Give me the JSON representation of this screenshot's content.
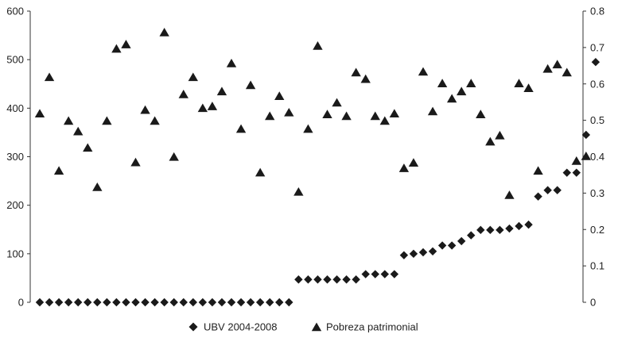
{
  "chart_data": {
    "type": "scatter",
    "title": "",
    "xlabel": "",
    "ylabel": "",
    "ylim_left": [
      0,
      600
    ],
    "ylim_right": [
      0,
      0.8
    ],
    "yticks_left": [
      "0",
      "100",
      "200",
      "300",
      "400",
      "500",
      "600"
    ],
    "yticks_right": [
      "0",
      "0.1",
      "0.2",
      "0.3",
      "0.4",
      "0.5",
      "0.6",
      "0.7",
      "0.8"
    ],
    "grid": false,
    "legend_position": "bottom",
    "legend": [
      "UBV 2004-2008",
      "Pobreza patrimonial"
    ],
    "series": [
      {
        "name": "UBV 2004-2008",
        "axis": "left",
        "marker": "diamond",
        "color": "#1a1a1a",
        "points": [
          [
            1,
            0
          ],
          [
            2,
            0
          ],
          [
            3,
            0
          ],
          [
            4,
            0
          ],
          [
            5,
            0
          ],
          [
            6,
            0
          ],
          [
            7,
            0
          ],
          [
            8,
            0
          ],
          [
            9,
            0
          ],
          [
            10,
            0
          ],
          [
            11,
            0
          ],
          [
            12,
            0
          ],
          [
            13,
            0
          ],
          [
            14,
            0
          ],
          [
            15,
            0
          ],
          [
            16,
            0
          ],
          [
            17,
            0
          ],
          [
            18,
            0
          ],
          [
            19,
            0
          ],
          [
            20,
            0
          ],
          [
            21,
            0
          ],
          [
            22,
            0
          ],
          [
            23,
            0
          ],
          [
            24,
            0
          ],
          [
            25,
            0
          ],
          [
            26,
            0
          ],
          [
            27,
            0
          ],
          [
            28,
            47
          ],
          [
            29,
            47
          ],
          [
            30,
            47
          ],
          [
            31,
            47
          ],
          [
            32,
            47
          ],
          [
            33,
            47
          ],
          [
            34,
            47
          ],
          [
            35,
            58
          ],
          [
            36,
            58
          ],
          [
            37,
            58
          ],
          [
            38,
            58
          ],
          [
            39,
            97
          ],
          [
            40,
            100
          ],
          [
            41,
            103
          ],
          [
            42,
            105
          ],
          [
            43,
            117
          ],
          [
            44,
            117
          ],
          [
            45,
            126
          ],
          [
            46,
            138
          ],
          [
            47,
            149
          ],
          [
            48,
            149
          ],
          [
            49,
            149
          ],
          [
            50,
            152
          ],
          [
            51,
            157
          ],
          [
            52,
            160
          ],
          [
            53,
            218
          ],
          [
            54,
            231
          ],
          [
            55,
            231
          ],
          [
            56,
            267
          ],
          [
            57,
            267
          ],
          [
            58,
            345
          ],
          [
            59,
            495
          ]
        ]
      },
      {
        "name": "Pobreza patrimonial",
        "axis": "right",
        "marker": "triangle",
        "color": "#1a1a1a",
        "points": [
          [
            1,
            0.517
          ],
          [
            2,
            0.617
          ],
          [
            3,
            0.36
          ],
          [
            4,
            0.497
          ],
          [
            5,
            0.468
          ],
          [
            6,
            0.423
          ],
          [
            7,
            0.315
          ],
          [
            8,
            0.497
          ],
          [
            9,
            0.695
          ],
          [
            10,
            0.707
          ],
          [
            11,
            0.383
          ],
          [
            12,
            0.527
          ],
          [
            13,
            0.497
          ],
          [
            14,
            0.74
          ],
          [
            15,
            0.398
          ],
          [
            16,
            0.57
          ],
          [
            17,
            0.617
          ],
          [
            18,
            0.532
          ],
          [
            19,
            0.537
          ],
          [
            20,
            0.578
          ],
          [
            21,
            0.655
          ],
          [
            22,
            0.475
          ],
          [
            23,
            0.595
          ],
          [
            24,
            0.355
          ],
          [
            25,
            0.51
          ],
          [
            26,
            0.565
          ],
          [
            27,
            0.52
          ],
          [
            28,
            0.302
          ],
          [
            29,
            0.475
          ],
          [
            30,
            0.703
          ],
          [
            31,
            0.515
          ],
          [
            32,
            0.547
          ],
          [
            33,
            0.51
          ],
          [
            34,
            0.63
          ],
          [
            35,
            0.612
          ],
          [
            36,
            0.51
          ],
          [
            37,
            0.497
          ],
          [
            38,
            0.517
          ],
          [
            39,
            0.367
          ],
          [
            40,
            0.382
          ],
          [
            41,
            0.632
          ],
          [
            42,
            0.523
          ],
          [
            43,
            0.6
          ],
          [
            44,
            0.558
          ],
          [
            45,
            0.578
          ],
          [
            46,
            0.6
          ],
          [
            47,
            0.515
          ],
          [
            48,
            0.44
          ],
          [
            49,
            0.457
          ],
          [
            50,
            0.293
          ],
          [
            51,
            0.6
          ],
          [
            52,
            0.587
          ],
          [
            53,
            0.36
          ],
          [
            54,
            0.64
          ],
          [
            55,
            0.652
          ],
          [
            56,
            0.63
          ],
          [
            57,
            0.387
          ],
          [
            58,
            0.4
          ]
        ]
      }
    ]
  }
}
